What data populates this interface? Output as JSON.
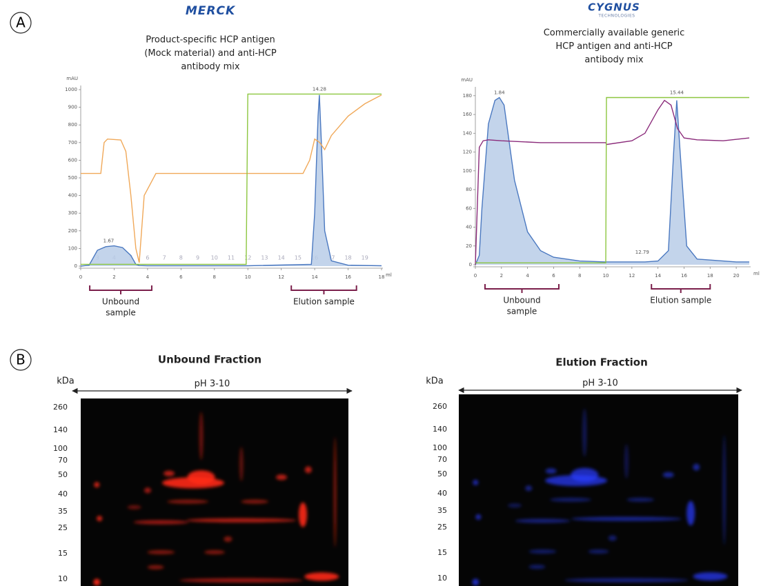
{
  "panel_labels": [
    "A",
    "B"
  ],
  "chart_data": [
    {
      "type": "line",
      "logo": "MERCK",
      "logo_color": "#1f4fa0",
      "caption": [
        "Product-specific HCP antigen",
        "(Mock material) and anti-HCP",
        "antibody mix"
      ],
      "y_label": "mAU",
      "x_label": "ml",
      "xlim": [
        0,
        18
      ],
      "ylim": [
        0,
        1000
      ],
      "xticks": [
        0,
        2,
        4,
        6,
        8,
        10,
        12,
        14,
        16,
        18
      ],
      "yticks": [
        0,
        100,
        200,
        300,
        400,
        500,
        600,
        700,
        800,
        900,
        1000
      ],
      "series": [
        {
          "color": "#4a78c0",
          "fill": "#b8cde8",
          "x": [
            0,
            0.5,
            1,
            1.5,
            2,
            2.5,
            3,
            3.3,
            3.5,
            4,
            10,
            13.8,
            14,
            14.2,
            14.28,
            14.4,
            14.6,
            15,
            16,
            18
          ],
          "values": [
            0,
            5,
            90,
            110,
            115,
            105,
            60,
            10,
            3,
            2,
            2,
            10,
            300,
            850,
            970,
            700,
            200,
            30,
            5,
            2
          ]
        },
        {
          "color": "#f0a858",
          "x": [
            0,
            1.2,
            1.4,
            1.6,
            2.4,
            2.7,
            3.0,
            3.3,
            3.5,
            3.8,
            4.5,
            13.3,
            13.7,
            14.0,
            14.3,
            14.6,
            15,
            16,
            17,
            18
          ],
          "values": [
            525,
            525,
            700,
            720,
            715,
            650,
            400,
            100,
            20,
            400,
            525,
            525,
            600,
            720,
            700,
            660,
            740,
            850,
            920,
            970
          ]
        },
        {
          "color": "#8cc63f",
          "x": [
            0,
            9.9,
            10,
            18
          ],
          "values": [
            10,
            10,
            975,
            975
          ]
        }
      ],
      "annotations": [
        {
          "x": 1.67,
          "y": 115
        },
        {
          "x": 14.28,
          "y": 975
        }
      ],
      "fractions": {
        "labels": [
          3,
          4,
          5,
          6,
          7,
          8,
          9,
          10,
          11,
          12,
          13,
          14,
          15,
          16,
          17,
          18,
          19
        ],
        "x": [
          1,
          2,
          3,
          4,
          5,
          6,
          7,
          8,
          9,
          10,
          11,
          12,
          13,
          14,
          15,
          16,
          17
        ]
      },
      "brackets": [
        {
          "lines": [
            "Unbound",
            "sample"
          ],
          "x": [
            0.54,
            4.25
          ]
        },
        {
          "lines": [
            "Elution sample"
          ],
          "x": [
            12.6,
            16.5
          ]
        }
      ]
    },
    {
      "type": "line",
      "logo": "CYGNUS",
      "logo_sub": "TECHNOLOGIES",
      "logo_color": "#1f4fa0",
      "caption": [
        "Commercially available generic",
        "HCP antigen and anti-HCP",
        "antibody mix"
      ],
      "y_label": "mAU",
      "x_label": "ml",
      "xlim": [
        0,
        21
      ],
      "ylim": [
        0,
        185
      ],
      "xticks": [
        0,
        2,
        4,
        6,
        8,
        10,
        12,
        14,
        16,
        18,
        20
      ],
      "yticks": [
        0,
        20,
        40,
        60,
        80,
        100,
        120,
        140,
        160,
        180
      ],
      "series": [
        {
          "color": "#4a78c0",
          "fill": "#b8cde8",
          "x": [
            0,
            0.3,
            0.5,
            1,
            1.5,
            1.84,
            2.2,
            3,
            4,
            5,
            6,
            8,
            10,
            13,
            14,
            14.8,
            15.2,
            15.44,
            15.7,
            16.2,
            17,
            20,
            21
          ],
          "values": [
            0,
            10,
            60,
            150,
            175,
            178,
            170,
            90,
            35,
            15,
            8,
            4,
            3,
            3,
            4,
            15,
            120,
            175,
            120,
            20,
            6,
            3,
            3
          ]
        },
        {
          "color": "#8a2a7a",
          "x": [
            0,
            0.3,
            0.6,
            1,
            2,
            5,
            8,
            10,
            10.05,
            12,
            13,
            14,
            14.5,
            15,
            15.5,
            16,
            17,
            19,
            21
          ],
          "values": [
            0,
            125,
            132,
            133,
            132,
            130,
            130,
            130,
            128,
            132,
            140,
            165,
            175,
            170,
            145,
            135,
            133,
            132,
            135
          ]
        },
        {
          "color": "#8cc63f",
          "x": [
            0,
            10,
            10.05,
            21
          ],
          "values": [
            2,
            2,
            178,
            178
          ]
        }
      ],
      "annotations": [
        {
          "x": 1.84,
          "y": 178
        },
        {
          "x": 15.44,
          "y": 178
        },
        {
          "x": 12.79,
          "y": 8
        }
      ],
      "brackets": [
        {
          "lines": [
            "Unbound",
            "sample"
          ],
          "x": [
            0.74,
            6.4
          ]
        },
        {
          "lines": [
            "Elution sample"
          ],
          "x": [
            13.5,
            18
          ]
        }
      ]
    }
  ],
  "gels": [
    {
      "title": "Unbound Fraction",
      "unit": "kDa",
      "ph": "pH 3-10",
      "color": "#ff2a1a",
      "markers": [
        260,
        140,
        100,
        70,
        50,
        40,
        35,
        25,
        15,
        10
      ]
    },
    {
      "title": "Elution Fraction",
      "unit": "kDa",
      "ph": "pH 3-10",
      "color": "#2a3cff",
      "markers": [
        260,
        140,
        100,
        70,
        50,
        40,
        35,
        25,
        15,
        10
      ]
    }
  ]
}
